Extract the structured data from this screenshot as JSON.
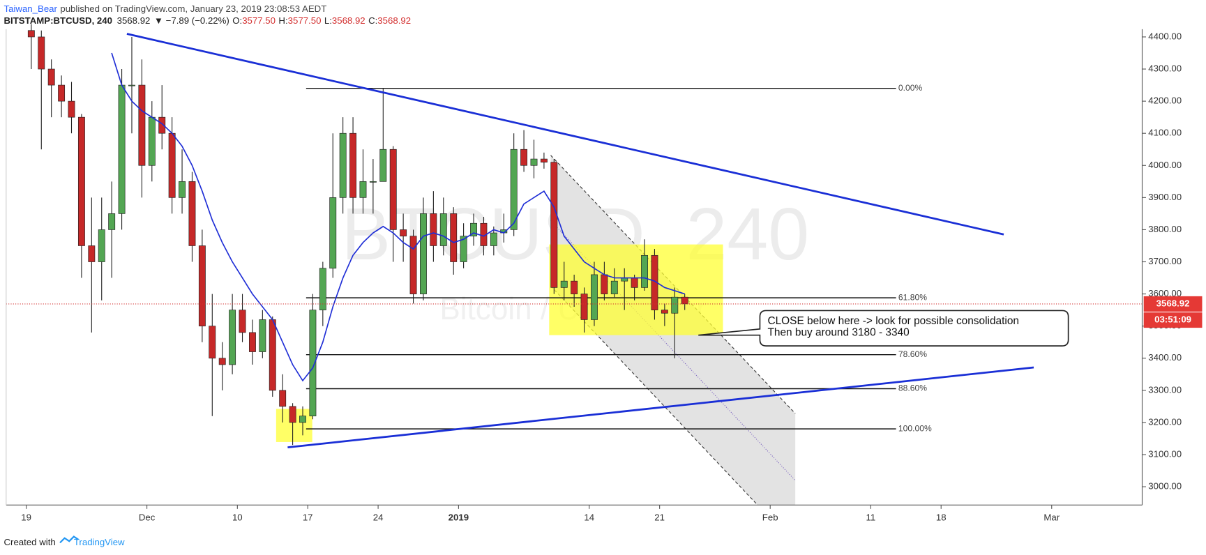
{
  "header": {
    "author": "Taiwan_Bear",
    "published": "published on TradingView.com, January 23, 2019 23:08:53 AEDT",
    "symbol": "BITSTAMP:BTCUSD, 240",
    "price": "3568.92",
    "change": "▼ −7.89 (−0.22%)",
    "open_label": "O:",
    "open": "3577.50",
    "high_label": "H:",
    "high": "3577.50",
    "low_label": "L:",
    "low": "3568.92",
    "close_label": "C:",
    "close": "3568.92"
  },
  "chart_data": {
    "type": "candlestick",
    "watermark": "BTCUSD, 240",
    "watermark_sub": "Bitcoin / U.S. Dollar",
    "up_color": "#53a653",
    "down_color": "#c62828",
    "ylim": [
      2943,
      4424
    ],
    "yticks": [
      {
        "value": 3000,
        "label": "3000.00"
      },
      {
        "value": 3100,
        "label": "3100.00"
      },
      {
        "value": 3200,
        "label": "3200.00"
      },
      {
        "value": 3300,
        "label": "3300.00"
      },
      {
        "value": 3400,
        "label": "3400.00"
      },
      {
        "value": 3500,
        "label": "3500.00"
      },
      {
        "value": 3600,
        "label": "3600.00"
      },
      {
        "value": 3700,
        "label": "3700.00"
      },
      {
        "value": 3800,
        "label": "3800.00"
      },
      {
        "value": 3900,
        "label": "3900.00"
      },
      {
        "value": 4000,
        "label": "4000.00"
      },
      {
        "value": 4100,
        "label": "4100.00"
      },
      {
        "value": 4200,
        "label": "4200.00"
      },
      {
        "value": 4300,
        "label": "4300.00"
      },
      {
        "value": 4400,
        "label": "4400.00"
      }
    ],
    "xlim": [
      "2018-11-17",
      "2019-03-10"
    ],
    "xticks": [
      {
        "value": "2018-11-19",
        "label": "19"
      },
      {
        "value": "2018-12-01",
        "label": "Dec"
      },
      {
        "value": "2018-12-10",
        "label": "10"
      },
      {
        "value": "2018-12-17",
        "label": "17"
      },
      {
        "value": "2018-12-24",
        "label": "24"
      },
      {
        "value": "2019-01-01",
        "label": "2019"
      },
      {
        "value": "2019-01-14",
        "label": "14"
      },
      {
        "value": "2019-01-21",
        "label": "21"
      },
      {
        "value": "2019-02-01",
        "label": "Feb"
      },
      {
        "value": "2019-02-11",
        "label": "11"
      },
      {
        "value": "2019-02-18",
        "label": "18"
      },
      {
        "value": "2019-03-01",
        "label": "Mar"
      }
    ],
    "grid": false,
    "candles": {
      "x": [
        "2018-11-19",
        "2018-11-20",
        "2018-11-21",
        "2018-11-22",
        "2018-11-23",
        "2018-11-24",
        "2018-11-25",
        "2018-11-26",
        "2018-11-27",
        "2018-11-28",
        "2018-11-29",
        "2018-11-30",
        "2018-12-01",
        "2018-12-02",
        "2018-12-03",
        "2018-12-04",
        "2018-12-05",
        "2018-12-06",
        "2018-12-07",
        "2018-12-08",
        "2018-12-09",
        "2018-12-10",
        "2018-12-11",
        "2018-12-12",
        "2018-12-13",
        "2018-12-14",
        "2018-12-15",
        "2018-12-16",
        "2018-12-17",
        "2018-12-18",
        "2018-12-19",
        "2018-12-20",
        "2018-12-21",
        "2018-12-22",
        "2018-12-23",
        "2018-12-24",
        "2018-12-25",
        "2018-12-26",
        "2018-12-27",
        "2018-12-28",
        "2018-12-29",
        "2018-12-30",
        "2018-12-31",
        "2019-01-01",
        "2019-01-02",
        "2019-01-03",
        "2019-01-04",
        "2019-01-05",
        "2019-01-06",
        "2019-01-07",
        "2019-01-08",
        "2019-01-09",
        "2019-01-10",
        "2019-01-11",
        "2019-01-12",
        "2019-01-13",
        "2019-01-14",
        "2019-01-15",
        "2019-01-16",
        "2019-01-17",
        "2019-01-18",
        "2019-01-19",
        "2019-01-20",
        "2019-01-21",
        "2019-01-22",
        "2019-01-23"
      ],
      "open": [
        4420,
        4400,
        4300,
        4250,
        4200,
        4150,
        3750,
        3700,
        3800,
        3850,
        4250,
        4250,
        4000,
        4150,
        4100,
        3900,
        3950,
        3750,
        3500,
        3400,
        3380,
        3550,
        3480,
        3420,
        3520,
        3300,
        3250,
        3200,
        3220,
        3550,
        3680,
        3900,
        4100,
        3900,
        3950,
        3950,
        4050,
        3800,
        3780,
        3600,
        3850,
        3750,
        3850,
        3700,
        3780,
        3820,
        3750,
        3790,
        3800,
        4050,
        4000,
        4020,
        4010,
        3620,
        3640,
        3600,
        3520,
        3660,
        3600,
        3640,
        3650,
        3620,
        3720,
        3550,
        3540,
        3590
      ],
      "high": [
        4440,
        4420,
        4330,
        4280,
        4260,
        4160,
        3900,
        3900,
        3950,
        4300,
        4400,
        4330,
        4200,
        4250,
        4150,
        4050,
        3980,
        3800,
        3600,
        3450,
        3600,
        3600,
        3520,
        3550,
        3530,
        3350,
        3260,
        3250,
        3600,
        3700,
        4100,
        4150,
        4150,
        4050,
        4020,
        4240,
        4060,
        3850,
        3800,
        3900,
        3920,
        3900,
        3870,
        3820,
        3850,
        3840,
        3810,
        3850,
        4100,
        4110,
        4080,
        4040,
        4020,
        3700,
        3660,
        3620,
        3700,
        3700,
        3680,
        3680,
        3660,
        3770,
        3740,
        3570,
        3620,
        3600
      ],
      "low": [
        4300,
        4050,
        4150,
        4150,
        4100,
        3650,
        3480,
        3580,
        3650,
        3800,
        4100,
        3900,
        3950,
        4050,
        3850,
        3850,
        3700,
        3450,
        3220,
        3300,
        3350,
        3450,
        3380,
        3400,
        3280,
        3200,
        3130,
        3160,
        3210,
        3500,
        3650,
        3850,
        3850,
        3850,
        3850,
        3950,
        3700,
        3700,
        3570,
        3580,
        3700,
        3720,
        3660,
        3680,
        3750,
        3720,
        3720,
        3760,
        3780,
        3980,
        3960,
        3990,
        3600,
        3580,
        3560,
        3480,
        3500,
        3580,
        3590,
        3550,
        3580,
        3610,
        3520,
        3500,
        3400,
        3550
      ],
      "close": [
        4400,
        4300,
        4250,
        4200,
        4150,
        3750,
        3700,
        3800,
        3850,
        4250,
        4250,
        4000,
        4150,
        4100,
        3900,
        3950,
        3750,
        3500,
        3400,
        3380,
        3550,
        3480,
        3420,
        3520,
        3300,
        3250,
        3200,
        3220,
        3550,
        3680,
        3900,
        4100,
        3900,
        3950,
        3950,
        4050,
        3800,
        3780,
        3600,
        3850,
        3750,
        3850,
        3700,
        3780,
        3820,
        3750,
        3790,
        3800,
        4050,
        4000,
        4020,
        4010,
        3620,
        3640,
        3600,
        3520,
        3660,
        3600,
        3640,
        3650,
        3620,
        3720,
        3550,
        3540,
        3590,
        3569
      ]
    },
    "moving_average": {
      "color": "#1f2ed6",
      "values": [
        null,
        null,
        null,
        null,
        null,
        null,
        null,
        null,
        4350,
        4250,
        4200,
        4170,
        4150,
        4130,
        4100,
        4060,
        4000,
        3920,
        3830,
        3760,
        3700,
        3650,
        3600,
        3560,
        3520,
        3450,
        3380,
        3330,
        3370,
        3450,
        3560,
        3650,
        3720,
        3760,
        3790,
        3810,
        3790,
        3760,
        3740,
        3780,
        3790,
        3780,
        3760,
        3770,
        3790,
        3780,
        3800,
        3790,
        3820,
        3880,
        3900,
        3920,
        3870,
        3780,
        3740,
        3700,
        3680,
        3660,
        3650,
        3650,
        3650,
        3650,
        3640,
        3620,
        3610,
        3600
      ]
    },
    "fib_levels": [
      {
        "value": 4240,
        "label": "0.00%"
      },
      {
        "value": 3588,
        "label": "61.80%"
      },
      {
        "value": 3411,
        "label": "78.60%"
      },
      {
        "value": 3305,
        "label": "88.60%"
      },
      {
        "value": 3180,
        "label": "100.00%"
      }
    ],
    "last_price": {
      "value": 3568.92,
      "label": "3568.92"
    },
    "countdown": "03:51:09",
    "annotation": [
      "CLOSE below here -> look for possible consolidation",
      "Then buy around 3180 - 3340"
    ]
  },
  "footer": {
    "created": "Created with",
    "brand": "TradingView"
  }
}
